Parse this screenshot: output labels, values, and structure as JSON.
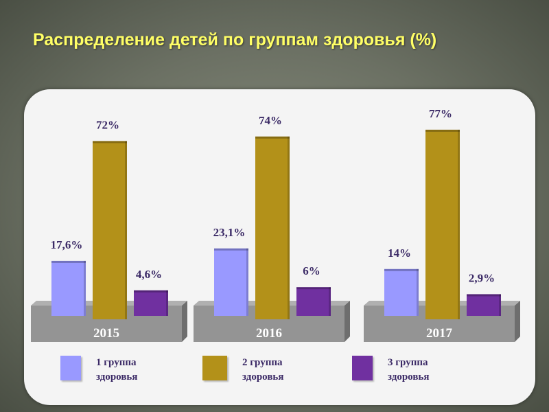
{
  "chart_data": {
    "type": "bar",
    "title": "Распределение детей по группам здоровья (%)",
    "categories": [
      "2015",
      "2016",
      "2017"
    ],
    "series": [
      {
        "name": "1 группа здоровья",
        "values": [
          17.6,
          23.1,
          14
        ],
        "labels": [
          "17,6%",
          "23,1%",
          "14%"
        ],
        "color": "#9999ff"
      },
      {
        "name": "2 группа здоровья",
        "values": [
          72,
          74,
          77
        ],
        "labels": [
          "72%",
          "74%",
          "77%"
        ],
        "color": "#b39119"
      },
      {
        "name": "3 группа здоровья",
        "values": [
          4.6,
          6,
          2.9
        ],
        "labels": [
          "4,6%",
          "6%",
          "2,9%"
        ],
        "color": "#7030a0"
      }
    ],
    "legend": {
      "placement": "bottom",
      "items": [
        [
          "1 группа",
          "здоровья"
        ],
        [
          "2 группа",
          "здоровья"
        ],
        [
          "3 группа",
          "здоровья"
        ]
      ]
    },
    "ylim": [
      0,
      80
    ]
  }
}
